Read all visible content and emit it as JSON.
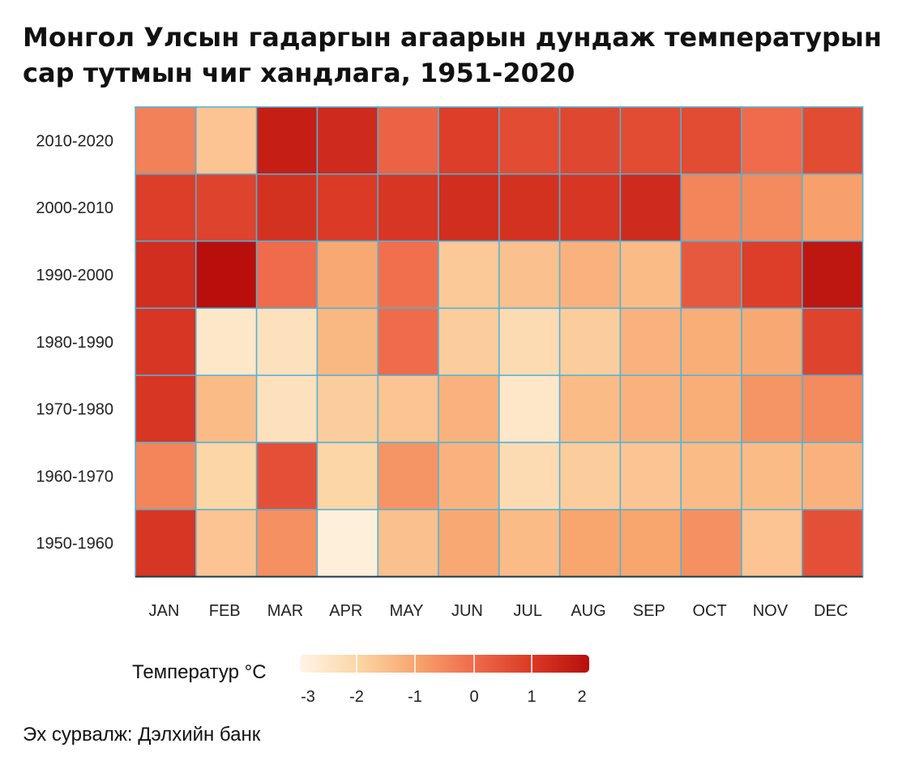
{
  "title_line1": "Монгол Улсын гадаргын агаарын дундаж температурын",
  "title_line2": "сар тутмын чиг хандлага, 1951-2020",
  "source": "Эх сурвалж: Дэлхийн банк",
  "chart_data": {
    "type": "heatmap",
    "title": "Монгол Улсын гадаргын агаарын дундаж температурын сар тутмын чиг хандлага, 1951-2020",
    "x": [
      "JAN",
      "FEB",
      "MAR",
      "APR",
      "MAY",
      "JUN",
      "JUL",
      "AUG",
      "SEP",
      "OCT",
      "NOV",
      "DEC"
    ],
    "y": [
      "2010-2020",
      "2000-2010",
      "1990-2000",
      "1980-1990",
      "1970-1980",
      "1960-1970",
      "1950-1960"
    ],
    "values": [
      [
        -0.6,
        -2.0,
        1.6,
        1.3,
        0.0,
        0.8,
        0.5,
        0.6,
        0.5,
        0.5,
        -0.2,
        0.5
      ],
      [
        0.8,
        0.7,
        1.1,
        0.9,
        1.0,
        1.2,
        1.1,
        1.0,
        1.3,
        -0.7,
        -0.8,
        -1.2
      ],
      [
        1.2,
        2.0,
        -0.2,
        -1.4,
        -0.3,
        -2.1,
        -1.9,
        -1.6,
        -1.8,
        0.2,
        0.8,
        1.8
      ],
      [
        1.0,
        -3.0,
        -2.8,
        -1.7,
        -0.2,
        -2.2,
        -2.6,
        -2.2,
        -1.6,
        -1.5,
        -1.4,
        0.7
      ],
      [
        1.0,
        -1.8,
        -2.8,
        -2.2,
        -2.0,
        -1.6,
        -3.0,
        -1.8,
        -1.6,
        -1.5,
        -1.0,
        -0.8
      ],
      [
        -0.7,
        -2.4,
        0.4,
        -2.4,
        -1.0,
        -1.6,
        -2.6,
        -2.2,
        -2.0,
        -1.8,
        -1.8,
        -1.6
      ],
      [
        1.0,
        -2.0,
        -0.9,
        -3.3,
        -1.9,
        -1.4,
        -1.8,
        -1.3,
        -1.3,
        -0.9,
        -2.0,
        0.4
      ]
    ],
    "legend_title": "Температур °C",
    "legend_ticks": [
      -3,
      -2,
      -1,
      0,
      1,
      2
    ],
    "color_range": [
      -3.5,
      2
    ],
    "colors": [
      "#fff4e6",
      "#fcd6a6",
      "#f8a56e",
      "#ef6b4b",
      "#da3a26",
      "#b80e0c"
    ],
    "grid_color": "#4fb3d9",
    "legend_position": "bottom-left"
  }
}
